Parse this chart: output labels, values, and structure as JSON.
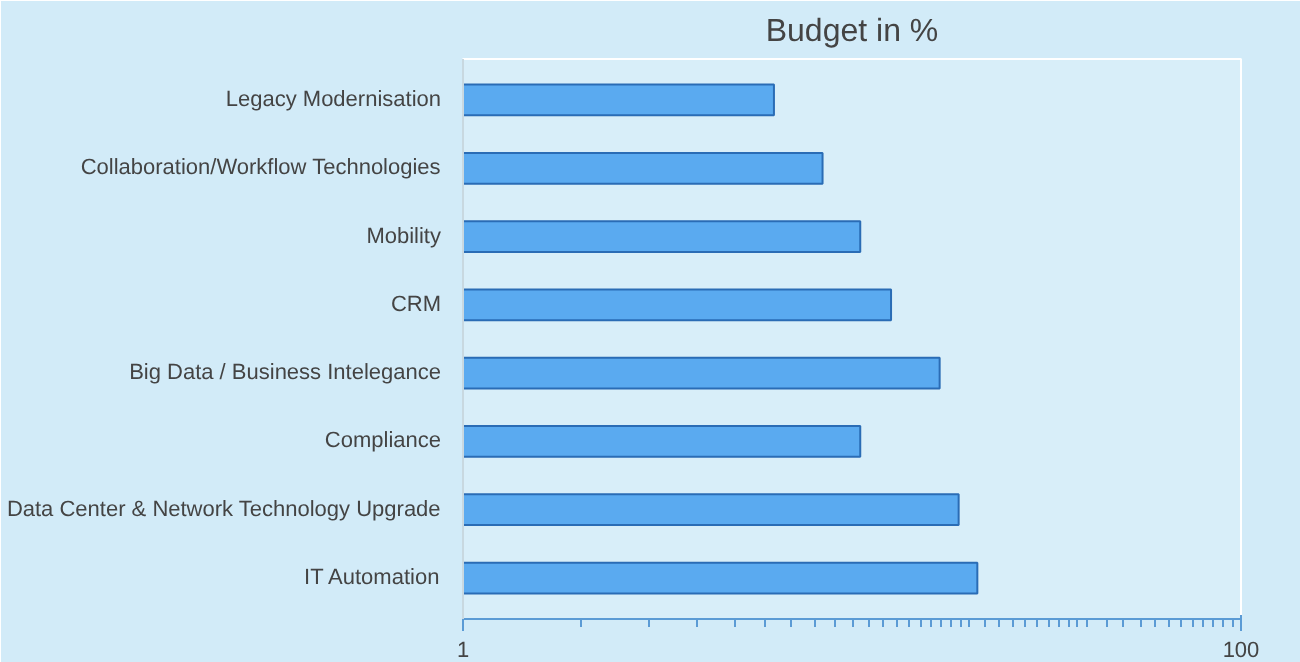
{
  "chart_data": {
    "type": "bar",
    "orientation": "horizontal",
    "title": "Budget in %",
    "categories": [
      "Legacy Modernisation",
      "Collaboration/Workflow Technologies",
      "Mobility",
      "CRM",
      "Big Data / Business Intelegance",
      "Compliance",
      "Data Center & Network Technology Upgrade",
      "IT Automation"
    ],
    "values": [
      6.3,
      8.4,
      10.5,
      12.6,
      16.8,
      10.5,
      18.8,
      21
    ],
    "color": "#5aaaf0",
    "log": "x",
    "xlim": [
      1,
      100
    ],
    "xticks": [
      1,
      {
        "value": 2,
        "label": null
      },
      {
        "value": 3,
        "label": null
      },
      {
        "value": 4,
        "label": null
      },
      {
        "value": 5,
        "label": null
      },
      {
        "value": 6,
        "label": null
      },
      {
        "value": 7,
        "label": null
      },
      {
        "value": 8,
        "label": null
      },
      {
        "value": 9,
        "label": null
      },
      {
        "value": 10,
        "label": null
      },
      {
        "value": 11,
        "label": null
      },
      {
        "value": 12,
        "label": null
      },
      {
        "value": 13,
        "label": null
      },
      {
        "value": 14,
        "label": null
      },
      {
        "value": 15,
        "label": null
      },
      {
        "value": 16,
        "label": null
      },
      {
        "value": 17,
        "label": null
      },
      {
        "value": 18,
        "label": null
      },
      {
        "value": 19,
        "label": null
      },
      {
        "value": 20,
        "label": null
      },
      {
        "value": 22,
        "label": null
      },
      {
        "value": 24,
        "label": null
      },
      {
        "value": 26,
        "label": null
      },
      {
        "value": 28,
        "label": null
      },
      {
        "value": 30,
        "label": null
      },
      {
        "value": 32,
        "label": null
      },
      {
        "value": 34,
        "label": null
      },
      {
        "value": 36,
        "label": null
      },
      {
        "value": 38,
        "label": null
      },
      {
        "value": 40,
        "label": null
      },
      {
        "value": 45,
        "label": null
      },
      {
        "value": 50,
        "label": null
      },
      {
        "value": 55,
        "label": null
      },
      {
        "value": 60,
        "label": null
      },
      {
        "value": 65,
        "label": null
      },
      {
        "value": 70,
        "label": null
      },
      {
        "value": 75,
        "label": null
      },
      {
        "value": 80,
        "label": null
      },
      {
        "value": 85,
        "label": null
      },
      {
        "value": 90,
        "label": null
      },
      {
        "value": 95,
        "label": null
      },
      100
    ],
    "grid": false
  }
}
